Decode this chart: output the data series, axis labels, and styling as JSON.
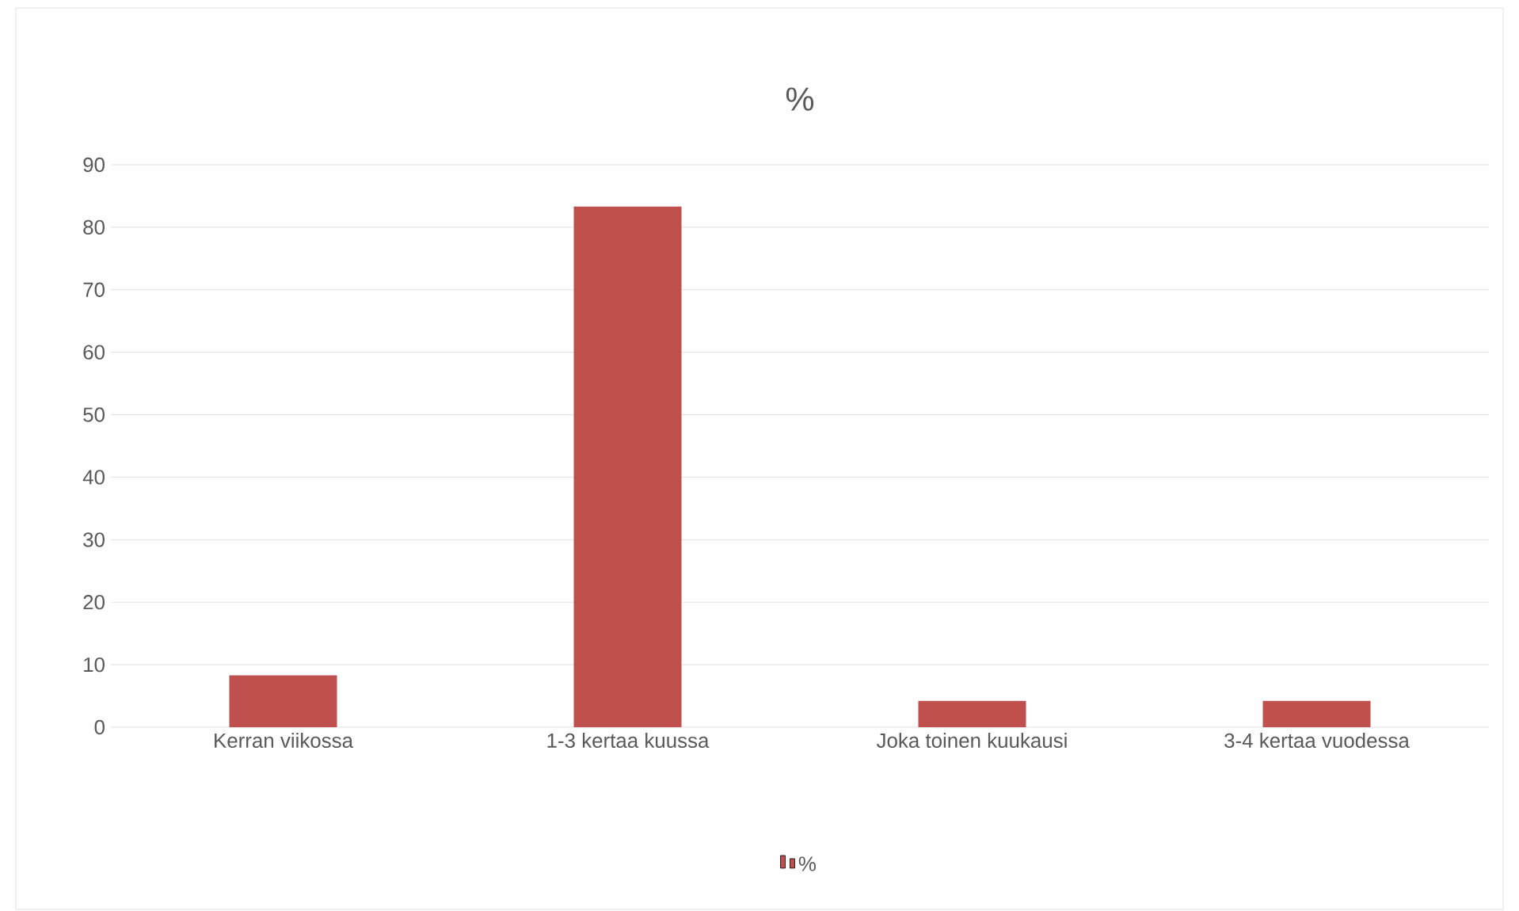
{
  "chart_data": {
    "type": "bar",
    "title": "%",
    "categories": [
      "Kerran viikossa",
      "1-3 kertaa kuussa",
      "Joka toinen kuukausi",
      "3-4 kertaa vuodessa"
    ],
    "series": [
      {
        "name": "%",
        "color": "#c0504d",
        "values": [
          8.3,
          83.3,
          4.2,
          4.2
        ]
      }
    ],
    "ylim": [
      0,
      90
    ],
    "yticks": [
      0,
      10,
      20,
      30,
      40,
      50,
      60,
      70,
      80,
      90
    ],
    "grid": "y",
    "legend": "bottom"
  }
}
